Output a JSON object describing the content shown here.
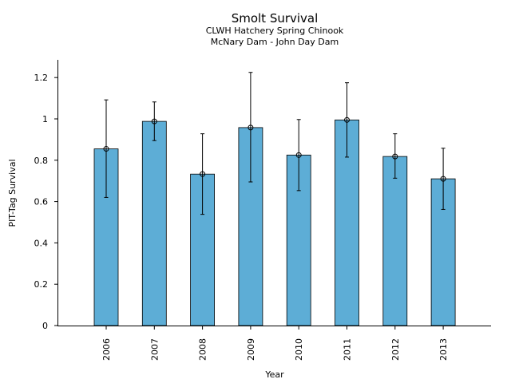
{
  "chart_data": {
    "type": "bar",
    "title": "Smolt Survival",
    "subtitle_lines": [
      "CLWH Hatchery Spring Chinook",
      "McNary Dam - John Day Dam"
    ],
    "xlabel": "Year",
    "ylabel": "PIT-Tag Survival",
    "categories": [
      "2006",
      "2007",
      "2008",
      "2009",
      "2010",
      "2011",
      "2012",
      "2013"
    ],
    "values": [
      0.855,
      0.988,
      0.733,
      0.958,
      0.825,
      0.995,
      0.818,
      0.71
    ],
    "error_low": [
      0.62,
      0.895,
      0.538,
      0.695,
      0.653,
      0.815,
      0.713,
      0.562
    ],
    "error_high": [
      1.092,
      1.082,
      0.928,
      1.225,
      0.997,
      1.175,
      0.928,
      0.858
    ],
    "ylim": [
      0,
      1.29
    ],
    "yticks": [
      0,
      0.2,
      0.4,
      0.6,
      0.8,
      1,
      1.2
    ],
    "ytick_labels": [
      "0",
      "0.2",
      "0.4",
      "0.6",
      "0.8",
      "1",
      "1.2"
    ],
    "grid": false,
    "bar_color": "#5dadd6",
    "bar_edge_color": "#000000"
  }
}
